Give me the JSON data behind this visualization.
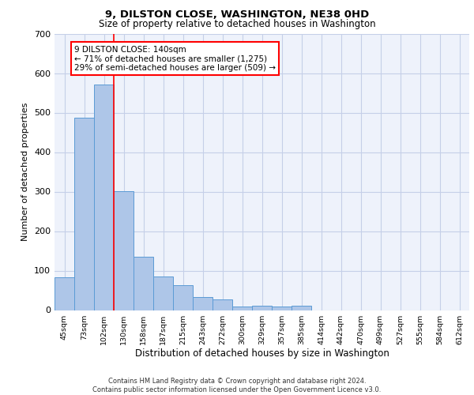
{
  "title1": "9, DILSTON CLOSE, WASHINGTON, NE38 0HD",
  "title2": "Size of property relative to detached houses in Washington",
  "xlabel": "Distribution of detached houses by size in Washington",
  "ylabel": "Number of detached properties",
  "categories": [
    "45sqm",
    "73sqm",
    "102sqm",
    "130sqm",
    "158sqm",
    "187sqm",
    "215sqm",
    "243sqm",
    "272sqm",
    "300sqm",
    "329sqm",
    "357sqm",
    "385sqm",
    "414sqm",
    "442sqm",
    "470sqm",
    "499sqm",
    "527sqm",
    "555sqm",
    "584sqm",
    "612sqm"
  ],
  "values": [
    83,
    487,
    572,
    302,
    135,
    85,
    63,
    34,
    27,
    9,
    11,
    9,
    11,
    0,
    0,
    0,
    0,
    0,
    0,
    0,
    0
  ],
  "bar_color": "#aec6e8",
  "bar_edge_color": "#5b9bd5",
  "red_line_x": 2.5,
  "annotation_line1": "9 DILSTON CLOSE: 140sqm",
  "annotation_line2": "← 71% of detached houses are smaller (1,275)",
  "annotation_line3": "29% of semi-detached houses are larger (509) →",
  "ylim_max": 700,
  "yticks": [
    0,
    100,
    200,
    300,
    400,
    500,
    600,
    700
  ],
  "footer_text": "Contains HM Land Registry data © Crown copyright and database right 2024.\nContains public sector information licensed under the Open Government Licence v3.0.",
  "background_color": "#eef2fb",
  "grid_color": "#c5cfe8"
}
